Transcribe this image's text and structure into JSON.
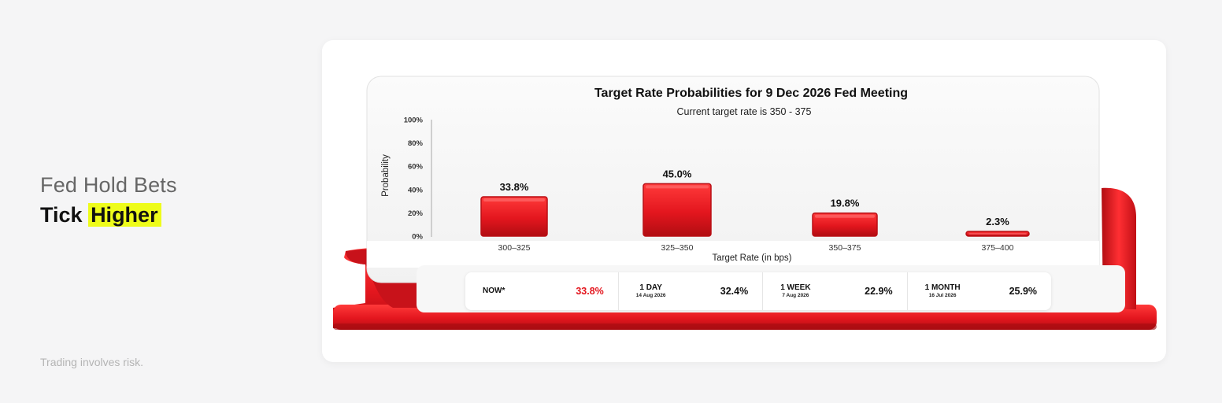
{
  "headline": {
    "line1": "Fed Hold Bets",
    "line2_plain": "Tick",
    "line2_highlight": "Higher"
  },
  "disclaimer": "Trading involves risk.",
  "colors": {
    "accent": "#e3161e",
    "highlight": "#eefc1a"
  },
  "chart_data": {
    "type": "bar",
    "title": "Target Rate Probabilities for 9 Dec 2026 Fed Meeting",
    "subtitle": "Current target rate is 350 - 375",
    "xlabel": "Target Rate (in bps)",
    "ylabel": "Probability",
    "categories": [
      "300–325",
      "325–350",
      "350–375",
      "375–400"
    ],
    "values": [
      33.8,
      45.0,
      19.8,
      2.3
    ],
    "value_labels": [
      "33.8%",
      "45.0%",
      "19.8%",
      "2.3%"
    ],
    "yticks": [
      "0%",
      "20%",
      "40%",
      "60%",
      "80%",
      "100%"
    ],
    "ylim": [
      0,
      100
    ],
    "grid": false
  },
  "probability_history": [
    {
      "period": "NOW*",
      "date": "",
      "value": "33.8%"
    },
    {
      "period": "1 DAY",
      "date": "14 Aug 2026",
      "value": "32.4%"
    },
    {
      "period": "1 WEEK",
      "date": "7 Aug 2026",
      "value": "22.9%"
    },
    {
      "period": "1 MONTH",
      "date": "16 Jul 2026",
      "value": "25.9%"
    }
  ]
}
